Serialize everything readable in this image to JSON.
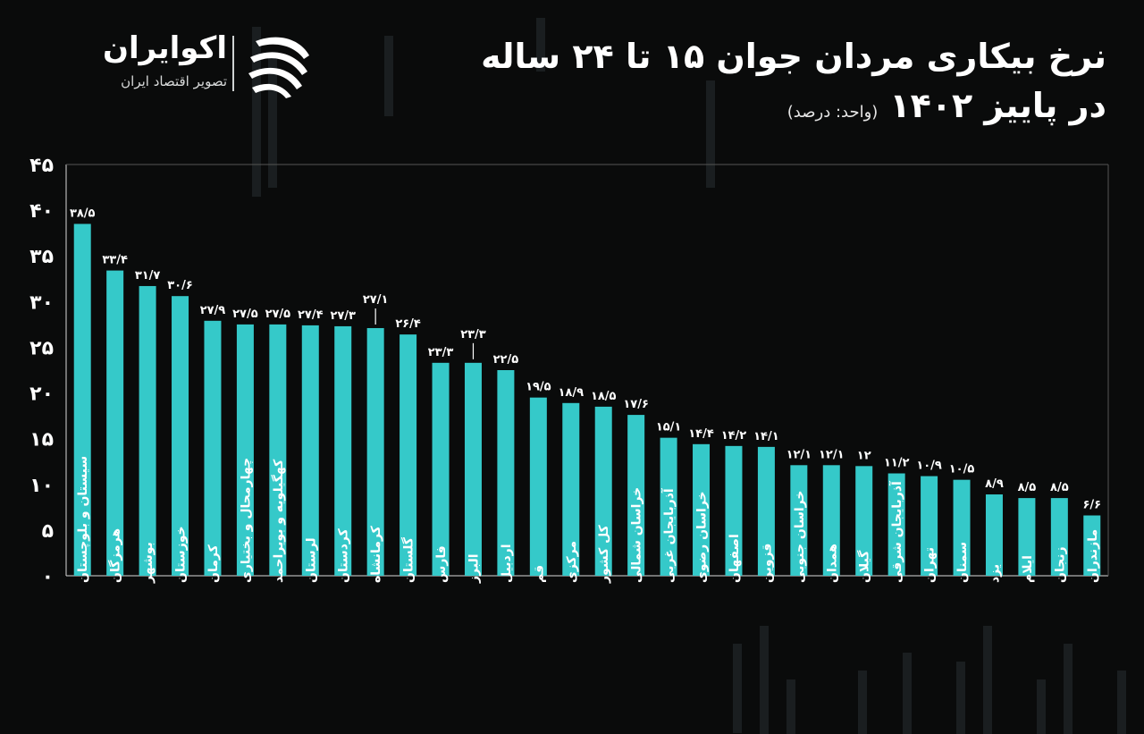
{
  "header": {
    "brand_name": "اکوایران",
    "brand_tagline": "تصویر اقتصاد ایران",
    "title_line1": "نرخ بیکاری مردان جوان ۱۵ تا ۲۴ ساله",
    "title_line2": "در پاییز ۱۴۰۲",
    "unit": "(واحد: درصد)"
  },
  "colors": {
    "background": "#0a0b0b",
    "bar": "#35c9c9",
    "text": "#ffffff",
    "axis": "#d9d9d9"
  },
  "chart_data": {
    "type": "bar",
    "title": "نرخ بیکاری مردان جوان ۱۵ تا ۲۴ ساله در پاییز ۱۴۰۲",
    "ylabel": "",
    "xlabel": "",
    "ylim": [
      0,
      45
    ],
    "yticks": [
      0,
      5,
      10,
      15,
      20,
      25,
      30,
      35,
      40,
      45
    ],
    "ytick_labels": [
      "۰",
      "۵",
      "۱۰",
      "۱۵",
      "۲۰",
      "۲۵",
      "۳۰",
      "۳۵",
      "۴۰",
      "۴۵"
    ],
    "grid": false,
    "categories": [
      "سیستان و بلوچستان",
      "هرمزگان",
      "بوشهر",
      "خوزستان",
      "کرمان",
      "چهارمحال و بختیاری",
      "کهگیلویه و بویراحمد",
      "لرستان",
      "کردستان",
      "کرمانشاه",
      "گلستان",
      "فارس",
      "البرز",
      "اردبیل",
      "قم",
      "مرکزی",
      "کل کشور",
      "خراسان شمالی",
      "آذربایجان غربی",
      "خراسان رضوی",
      "اصفهان",
      "قزوین",
      "خراسان جنوبی",
      "همدان",
      "گیلان",
      "آذربایجان شرقی",
      "تهران",
      "سمنان",
      "یزد",
      "ایلام",
      "زنجان",
      "مازندران"
    ],
    "values": [
      38.5,
      33.4,
      31.7,
      30.6,
      27.9,
      27.5,
      27.5,
      27.4,
      27.3,
      27.1,
      26.4,
      23.3,
      23.3,
      22.5,
      19.5,
      18.9,
      18.5,
      17.6,
      15.1,
      14.4,
      14.2,
      14.1,
      12.1,
      12.1,
      12,
      11.2,
      10.9,
      10.5,
      8.9,
      8.5,
      8.5,
      6.6
    ],
    "value_labels": [
      "۳۸/۵",
      "۳۳/۴",
      "۳۱/۷",
      "۳۰/۶",
      "۲۷/۹",
      "۲۷/۵",
      "۲۷/۵",
      "۲۷/۴",
      "۲۷/۳",
      "۲۷/۱",
      "۲۶/۴",
      "۲۳/۳",
      "۲۳/۳",
      "۲۲/۵",
      "۱۹/۵",
      "۱۸/۹",
      "۱۸/۵",
      "۱۷/۶",
      "۱۵/۱",
      "۱۴/۴",
      "۱۴/۲",
      "۱۴/۱",
      "۱۲/۱",
      "۱۲/۱",
      "۱۲",
      "۱۱/۲",
      "۱۰/۹",
      "۱۰/۵",
      "۸/۹",
      "۸/۵",
      "۸/۵",
      "۶/۶"
    ]
  }
}
